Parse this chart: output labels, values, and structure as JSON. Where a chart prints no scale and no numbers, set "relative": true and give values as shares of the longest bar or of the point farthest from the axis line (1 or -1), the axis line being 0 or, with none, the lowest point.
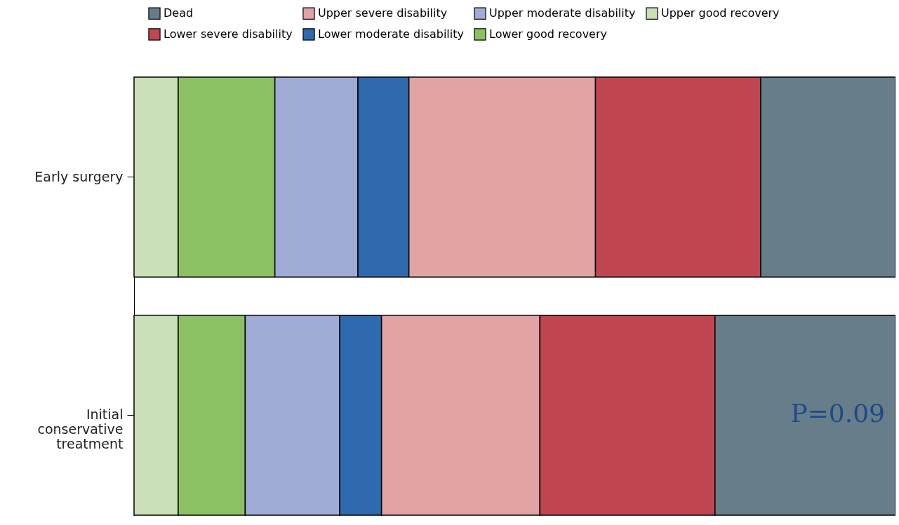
{
  "chart_data": {
    "type": "bar",
    "orientation": "horizontal",
    "stacked": true,
    "relative": true,
    "legend": "top",
    "categories": [
      "Early surgery",
      "Initial conservative treatment"
    ],
    "series": [
      {
        "name": "Upper good recovery",
        "color": "#cae0b6",
        "values": [
          0.058,
          0.058
        ]
      },
      {
        "name": "Lower good recovery",
        "color": "#8bc163",
        "values": [
          0.127,
          0.088
        ]
      },
      {
        "name": "Upper moderate disability",
        "color": "#a0acd6",
        "values": [
          0.109,
          0.124
        ]
      },
      {
        "name": "Lower moderate disability",
        "color": "#2f69ae",
        "values": [
          0.067,
          0.055
        ]
      },
      {
        "name": "Upper severe disability",
        "color": "#e2a3a3",
        "values": [
          0.245,
          0.208
        ]
      },
      {
        "name": "Lower severe disability",
        "color": "#c04651",
        "values": [
          0.217,
          0.23
        ]
      },
      {
        "name": "Dead",
        "color": "#677d89",
        "values": [
          0.177,
          0.237
        ]
      }
    ],
    "annotations": [
      "P=0.09"
    ]
  }
}
